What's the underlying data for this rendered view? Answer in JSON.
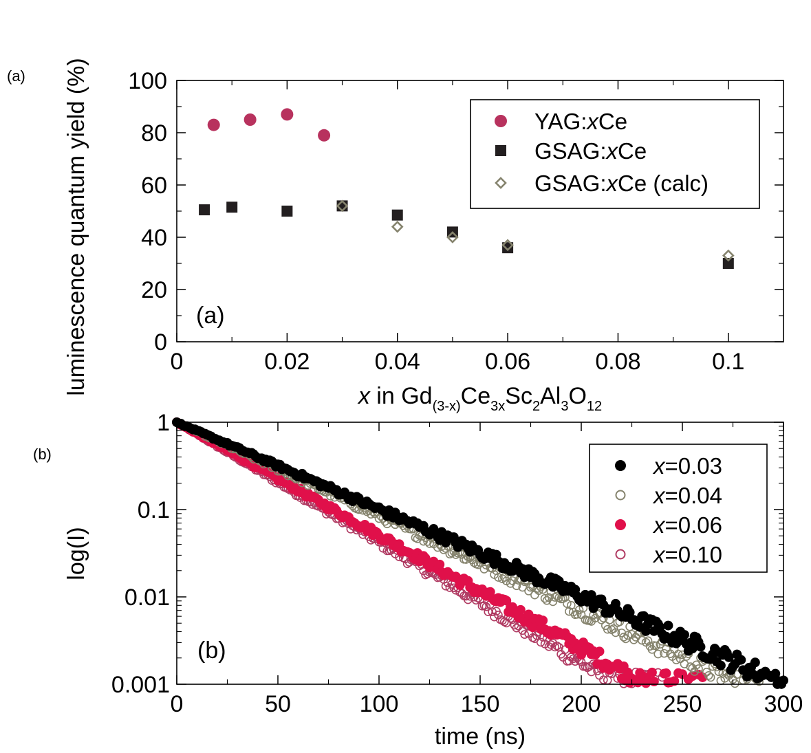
{
  "colors": {
    "yag": "#b8325e",
    "gsag": "#231f20",
    "calc": "#85836d",
    "x003": "#000000",
    "x004": "#85836d",
    "x006": "#e0104a",
    "x010": "#b03a62"
  },
  "chart_data": [
    {
      "type": "scatter",
      "corner_label": "(a)",
      "panel_tag": "(a)",
      "xlabel": {
        "prefix": "x",
        "rest": " in Gd",
        "sub1": "(3-x)",
        "ce": "Ce",
        "sub2": "3x",
        "sc": "Sc",
        "sub3": "2",
        "al": "Al",
        "sub4": "3",
        "o": "O",
        "sub5": "12"
      },
      "ylabel": "luminescence quantum yield (%)",
      "xlim": [
        0,
        0.11
      ],
      "ylim": [
        0,
        100
      ],
      "xticks": [
        0,
        0.02,
        0.04,
        0.06,
        0.08,
        0.1
      ],
      "xtick_labels": [
        "0",
        "0.02",
        "0.04",
        "0.06",
        "0.08",
        "0.1"
      ],
      "yticks": [
        0,
        20,
        40,
        60,
        80,
        100
      ],
      "ytick_labels": [
        "0",
        "20",
        "40",
        "60",
        "80",
        "100"
      ],
      "legend_position": "top-right",
      "series": [
        {
          "name": "YAG:xCe",
          "legend": [
            "YAG:",
            "x",
            "Ce"
          ],
          "marker": "circle-filled",
          "x": [
            0.0067,
            0.0133,
            0.02,
            0.0267
          ],
          "y": [
            83,
            85,
            87,
            79
          ]
        },
        {
          "name": "GSAG:xCe",
          "legend": [
            "GSAG:",
            "x",
            "Ce"
          ],
          "marker": "square-filled",
          "x": [
            0.005,
            0.01,
            0.02,
            0.03,
            0.04,
            0.05,
            0.06,
            0.1
          ],
          "y": [
            50.5,
            51.5,
            50,
            52,
            48.5,
            42,
            36,
            30
          ]
        },
        {
          "name": "GSAG:xCe (calc)",
          "legend": [
            "GSAG:",
            "x",
            "Ce (calc)"
          ],
          "marker": "diamond-open",
          "x": [
            0.03,
            0.04,
            0.05,
            0.06,
            0.1
          ],
          "y": [
            52,
            44,
            40,
            37,
            33
          ]
        }
      ]
    },
    {
      "type": "scatter",
      "corner_label": "(b)",
      "panel_tag": "(b)",
      "xlabel": "time (ns)",
      "ylabel": "log(I)",
      "xlim": [
        0,
        300
      ],
      "ylim": [
        0.001,
        1
      ],
      "yscale": "log",
      "xticks": [
        0,
        50,
        100,
        150,
        200,
        250,
        300
      ],
      "xtick_labels": [
        "0",
        "50",
        "100",
        "150",
        "200",
        "250",
        "300"
      ],
      "yticks": [
        0.001,
        0.01,
        0.1,
        1
      ],
      "ytick_labels": [
        "0.001",
        "0.01",
        "0.1",
        "1"
      ],
      "legend_position": "top-right",
      "series": [
        {
          "name": "x=0.03",
          "legend": [
            "x",
            "=0.03"
          ],
          "marker": "circle-filled",
          "decay_tau_ns": [
            43.6
          ],
          "end_time_ns": 300
        },
        {
          "name": "x=0.04",
          "legend": [
            "x",
            "=0.04"
          ],
          "marker": "circle-open",
          "decay_tau_ns": [
            40.3
          ],
          "end_time_ns": 290
        },
        {
          "name": "x=0.06",
          "legend": [
            "x",
            "=0.06"
          ],
          "marker": "circle-filled",
          "decay_tau_ns": [
            33.6
          ],
          "end_time_ns": 260
        },
        {
          "name": "x=0.10",
          "legend": [
            "x",
            "=0.10"
          ],
          "marker": "circle-open",
          "decay_tau_ns": [
            31.5
          ],
          "end_time_ns": 240
        }
      ]
    }
  ]
}
